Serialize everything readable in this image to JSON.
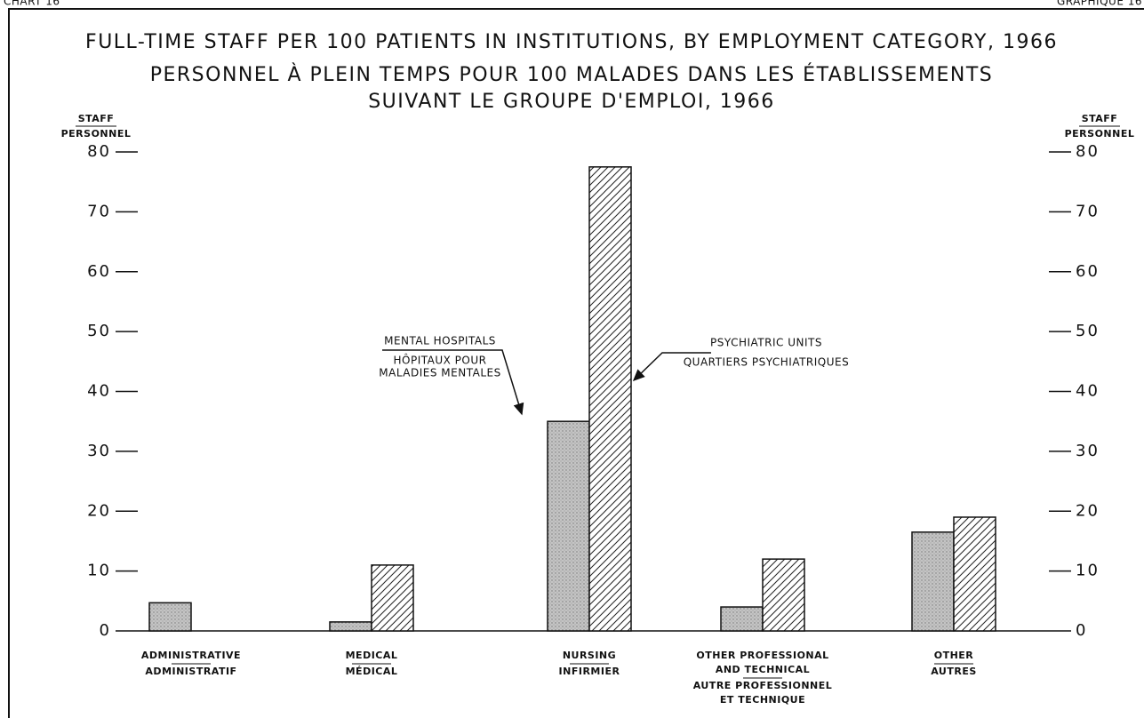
{
  "chart_data": {
    "type": "bar",
    "corner_left": "CHART 16",
    "corner_right": "GRAPHIQUE 16",
    "title": [
      "FULL-TIME STAFF PER 100 PATIENTS IN INSTITUTIONS, BY EMPLOYMENT CATEGORY, 1966",
      "PERSONNEL À PLEIN TEMPS POUR 100 MALADES DANS LES ÉTABLISSEMENTS",
      "SUIVANT LE GROUPE D'EMPLOI, 1966"
    ],
    "ylabel": [
      "STAFF",
      "PERSONNEL"
    ],
    "y2label": [
      "STAFF",
      "PERSONNEL"
    ],
    "categories": [
      [
        "ADMINISTRATIVE",
        "ADMINISTRATIF"
      ],
      [
        "MEDICAL",
        "MÉDICAL"
      ],
      [
        "NURSING",
        "INFIRMIER"
      ],
      [
        "OTHER PROFESSIONAL",
        "AND TECHNICAL",
        "AUTRE PROFESSIONNEL",
        "ET TECHNIQUE"
      ],
      [
        "OTHER",
        "AUTRES"
      ]
    ],
    "series": [
      {
        "name": "MENTAL HOSPITALS",
        "name_fr": [
          "HÔPITAUX POUR",
          "MALADIES MENTALES"
        ],
        "color": "#c4c4c4",
        "pattern": "stipple",
        "values": [
          4.7,
          1.5,
          35,
          4,
          16.5
        ]
      },
      {
        "name": "PSYCHIATRIC UNITS",
        "name_fr": [
          "QUARTIERS PSYCHIATRIQUES"
        ],
        "color": "#222222",
        "pattern": "hatch",
        "values": [
          null,
          11,
          77.5,
          12,
          19
        ]
      }
    ],
    "ylim": [
      0,
      80
    ],
    "yticks": [
      0,
      10,
      20,
      30,
      40,
      50,
      60,
      70,
      80
    ],
    "y2lim": [
      0,
      80
    ],
    "y2ticks": [
      0,
      10,
      20,
      30,
      40,
      50,
      60,
      70,
      80
    ]
  }
}
